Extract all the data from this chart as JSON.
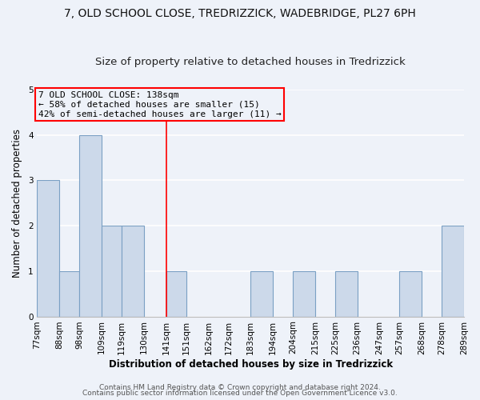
{
  "title": "7, OLD SCHOOL CLOSE, TREDRIZZICK, WADEBRIDGE, PL27 6PH",
  "subtitle": "Size of property relative to detached houses in Tredrizzick",
  "xlabel": "Distribution of detached houses by size in Tredrizzick",
  "ylabel": "Number of detached properties",
  "bin_edges": [
    77,
    88,
    98,
    109,
    119,
    130,
    141,
    151,
    162,
    172,
    183,
    194,
    204,
    215,
    225,
    236,
    247,
    257,
    268,
    278,
    289
  ],
  "bar_heights": [
    3,
    1,
    4,
    2,
    2,
    0,
    1,
    0,
    0,
    0,
    1,
    0,
    1,
    0,
    1,
    0,
    0,
    1,
    0,
    2
  ],
  "bar_color": "#ccd9ea",
  "bar_edgecolor": "#7aa0c4",
  "bar_linewidth": 0.8,
  "red_line_x": 141,
  "ylim": [
    0,
    5
  ],
  "yticks": [
    0,
    1,
    2,
    3,
    4,
    5
  ],
  "annotation_text": "7 OLD SCHOOL CLOSE: 138sqm\n← 58% of detached houses are smaller (15)\n42% of semi-detached houses are larger (11) →",
  "footer1": "Contains HM Land Registry data © Crown copyright and database right 2024.",
  "footer2": "Contains public sector information licensed under the Open Government Licence v3.0.",
  "background_color": "#eef2f9",
  "plot_bg_color": "#eef2f9",
  "grid_color": "#ffffff",
  "title_fontsize": 10,
  "title_fontweight": "normal",
  "subtitle_fontsize": 9.5,
  "axis_label_fontsize": 8.5,
  "tick_fontsize": 7.5,
  "annotation_fontsize": 8,
  "footer_fontsize": 6.5
}
